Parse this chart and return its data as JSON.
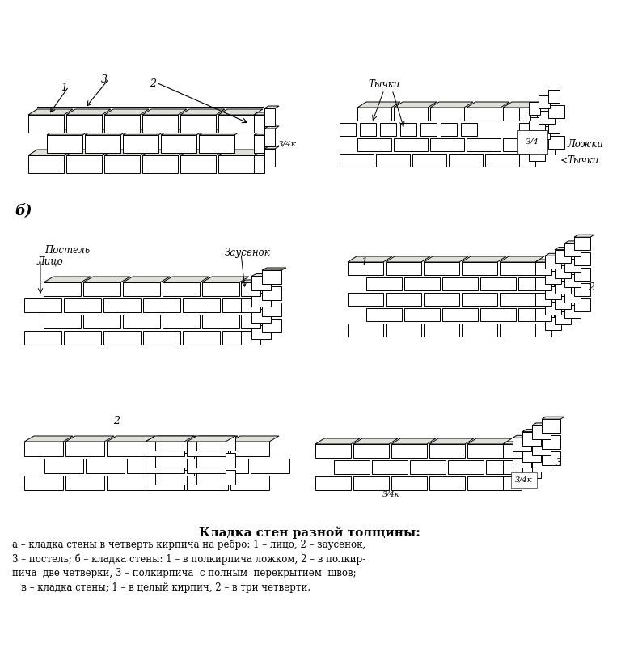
{
  "title": "Кладка стен разной толщины:",
  "caption_lines": [
    "а – кладка стены в четверть кирпича на ребро: 1 – лицо, 2 – заусенок,",
    "3 – постель; б – кладка стены: 1 – в полкирпича ложком, 2 – в полкир-",
    "пича  две четверки, 3 – полкирпича  с полным  перекрытием  швов;",
    "   в – кладка стены; 1 – в целый кирпич, 2 – в три четверти."
  ],
  "bg_color": "#ffffff",
  "line_color": "#000000",
  "brick_face_color": "#f5f5f0",
  "brick_top_color": "#e8e8e0"
}
